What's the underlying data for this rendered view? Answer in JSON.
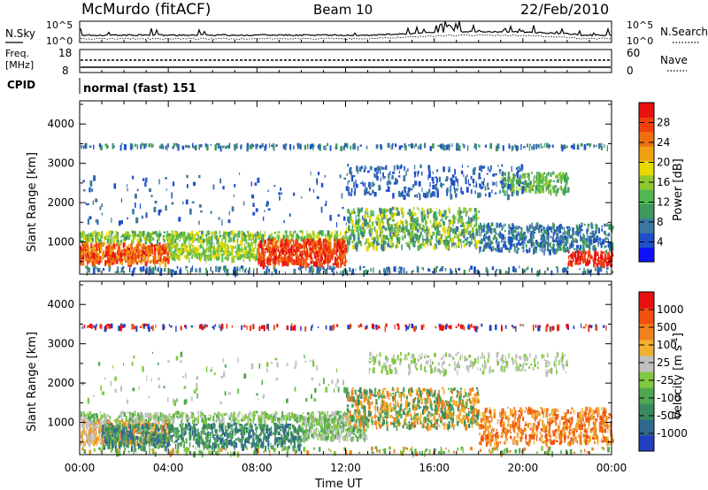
{
  "header": {
    "title": "McMurdo (fitACF)",
    "beam": "Beam 10",
    "date": "22/Feb/2010"
  },
  "noise_panel": {
    "left_label": "N.Sky",
    "right_label": "N.Search",
    "left_ticks": [
      "10^5",
      "10^0"
    ],
    "right_ticks": [
      "10^5",
      "10^0"
    ]
  },
  "freq_panel": {
    "left_label": "Freq.",
    "left_unit": "[MHz]",
    "right_label": "Nave",
    "left_ticks": [
      "18",
      "8"
    ],
    "right_ticks": [
      "60",
      "0"
    ]
  },
  "cpid": {
    "label": "CPID",
    "value": "normal (fast) 151"
  },
  "chart_data": [
    {
      "type": "heatmap",
      "parameter": "Power",
      "ylabel": "Slant Range [km]",
      "xlabel": "Time UT",
      "yticks": [
        "1000",
        "2000",
        "3000",
        "4000"
      ],
      "xticks": [
        "00:00",
        "04:00",
        "08:00",
        "12:00",
        "16:00",
        "20:00",
        "00:00"
      ],
      "ylim": [
        180,
        4590
      ],
      "colorbar": {
        "label": "Power [dB]",
        "ticks": [
          "4",
          "8",
          "12",
          "16",
          "20",
          "24",
          "28"
        ],
        "colors": [
          "#1010ff",
          "#2050c8",
          "#3c78a0",
          "#409860",
          "#50b850",
          "#90c830",
          "#e8d800",
          "#f0a010",
          "#f07010",
          "#f04010",
          "#e81010"
        ]
      }
    },
    {
      "type": "heatmap",
      "parameter": "Velocity",
      "ylabel": "Slant Range [km]",
      "xlabel": "Time UT",
      "yticks": [
        "1000",
        "2000",
        "3000",
        "4000"
      ],
      "xticks": [
        "00:00",
        "04:00",
        "08:00",
        "12:00",
        "16:00",
        "20:00",
        "00:00"
      ],
      "ylim": [
        180,
        4590
      ],
      "colorbar": {
        "label": "Velocity [m s^-1]",
        "ticks": [
          "1000",
          "500",
          "100",
          "25",
          "-25",
          "-100",
          "-500",
          "-1000"
        ],
        "colors": [
          "#2040c0",
          "#306890",
          "#3a8a60",
          "#50a850",
          "#80c840",
          "#c0c0c0",
          "#f0b030",
          "#f08020",
          "#f05010",
          "#e81010"
        ]
      }
    }
  ],
  "x_axis": {
    "label": "Time UT",
    "ticks": [
      "00:00",
      "04:00",
      "08:00",
      "12:00",
      "16:00",
      "20:00",
      "00:00"
    ]
  }
}
